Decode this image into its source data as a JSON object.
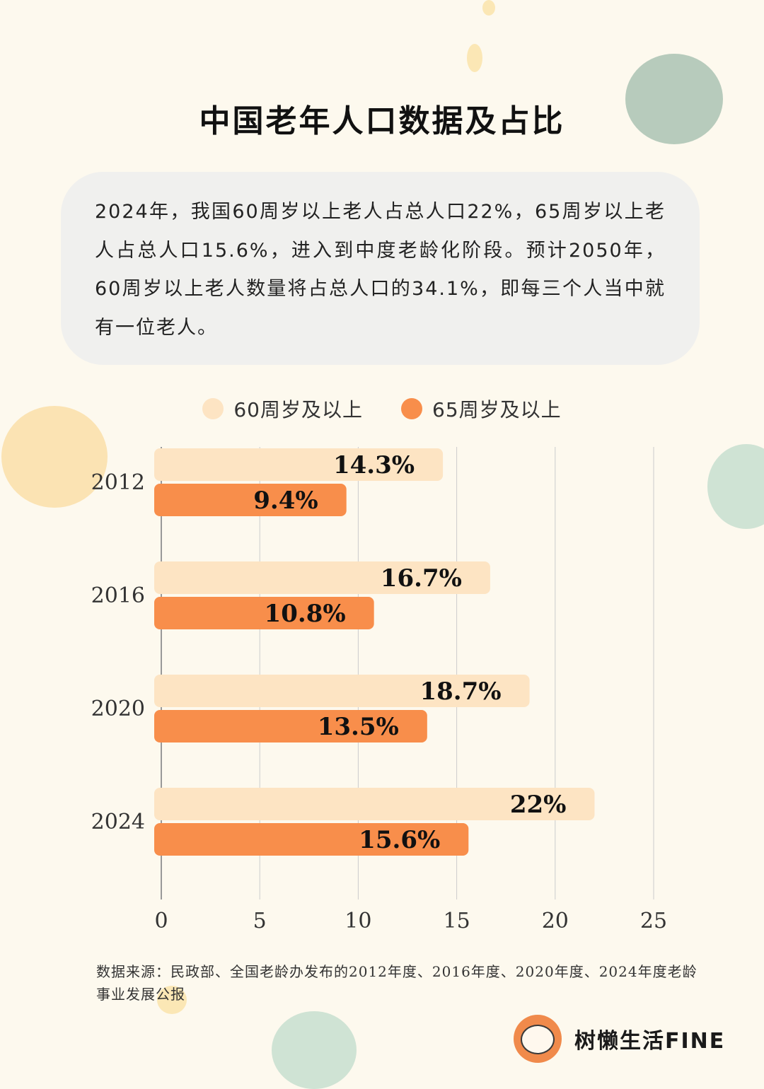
{
  "title": "中国老年人口数据及占比",
  "intro": "2024年，我国60周岁以上老人占总人口22%，65周岁以上老人占总人口15.6%，进入到中度老龄化阶段。预计2050年，60周岁以上老人数量将占总人口的34.1%，即每三个人当中就有一位老人。",
  "source": "数据来源：民政部、全国老龄办发布的2012年度、2016年度、2020年度、2024年度老龄事业发展公报",
  "brand": {
    "name": "树懒生活FINE",
    "logo_icon": "sloth-logo-icon"
  },
  "colors": {
    "bar_60": "#fde4c3",
    "bar_65": "#f88e4b",
    "background": "#fdf9ee",
    "grid": "#cccccc"
  },
  "chart_data": {
    "type": "bar",
    "orientation": "horizontal",
    "categories": [
      "2012",
      "2016",
      "2020",
      "2024"
    ],
    "series": [
      {
        "name": "60周岁及以上",
        "values": [
          14.3,
          16.7,
          18.7,
          22
        ],
        "labels": [
          "14.3%",
          "16.7%",
          "18.7%",
          "22%"
        ]
      },
      {
        "name": "65周岁及以上",
        "values": [
          9.4,
          10.8,
          13.5,
          15.6
        ],
        "labels": [
          "9.4%",
          "10.8%",
          "13.5%",
          "15.6%"
        ]
      }
    ],
    "xlim": [
      0,
      25
    ],
    "xticks": [
      "0",
      "5",
      "10",
      "15",
      "20",
      "25"
    ],
    "grid": "vertical",
    "legend": "top-center"
  }
}
